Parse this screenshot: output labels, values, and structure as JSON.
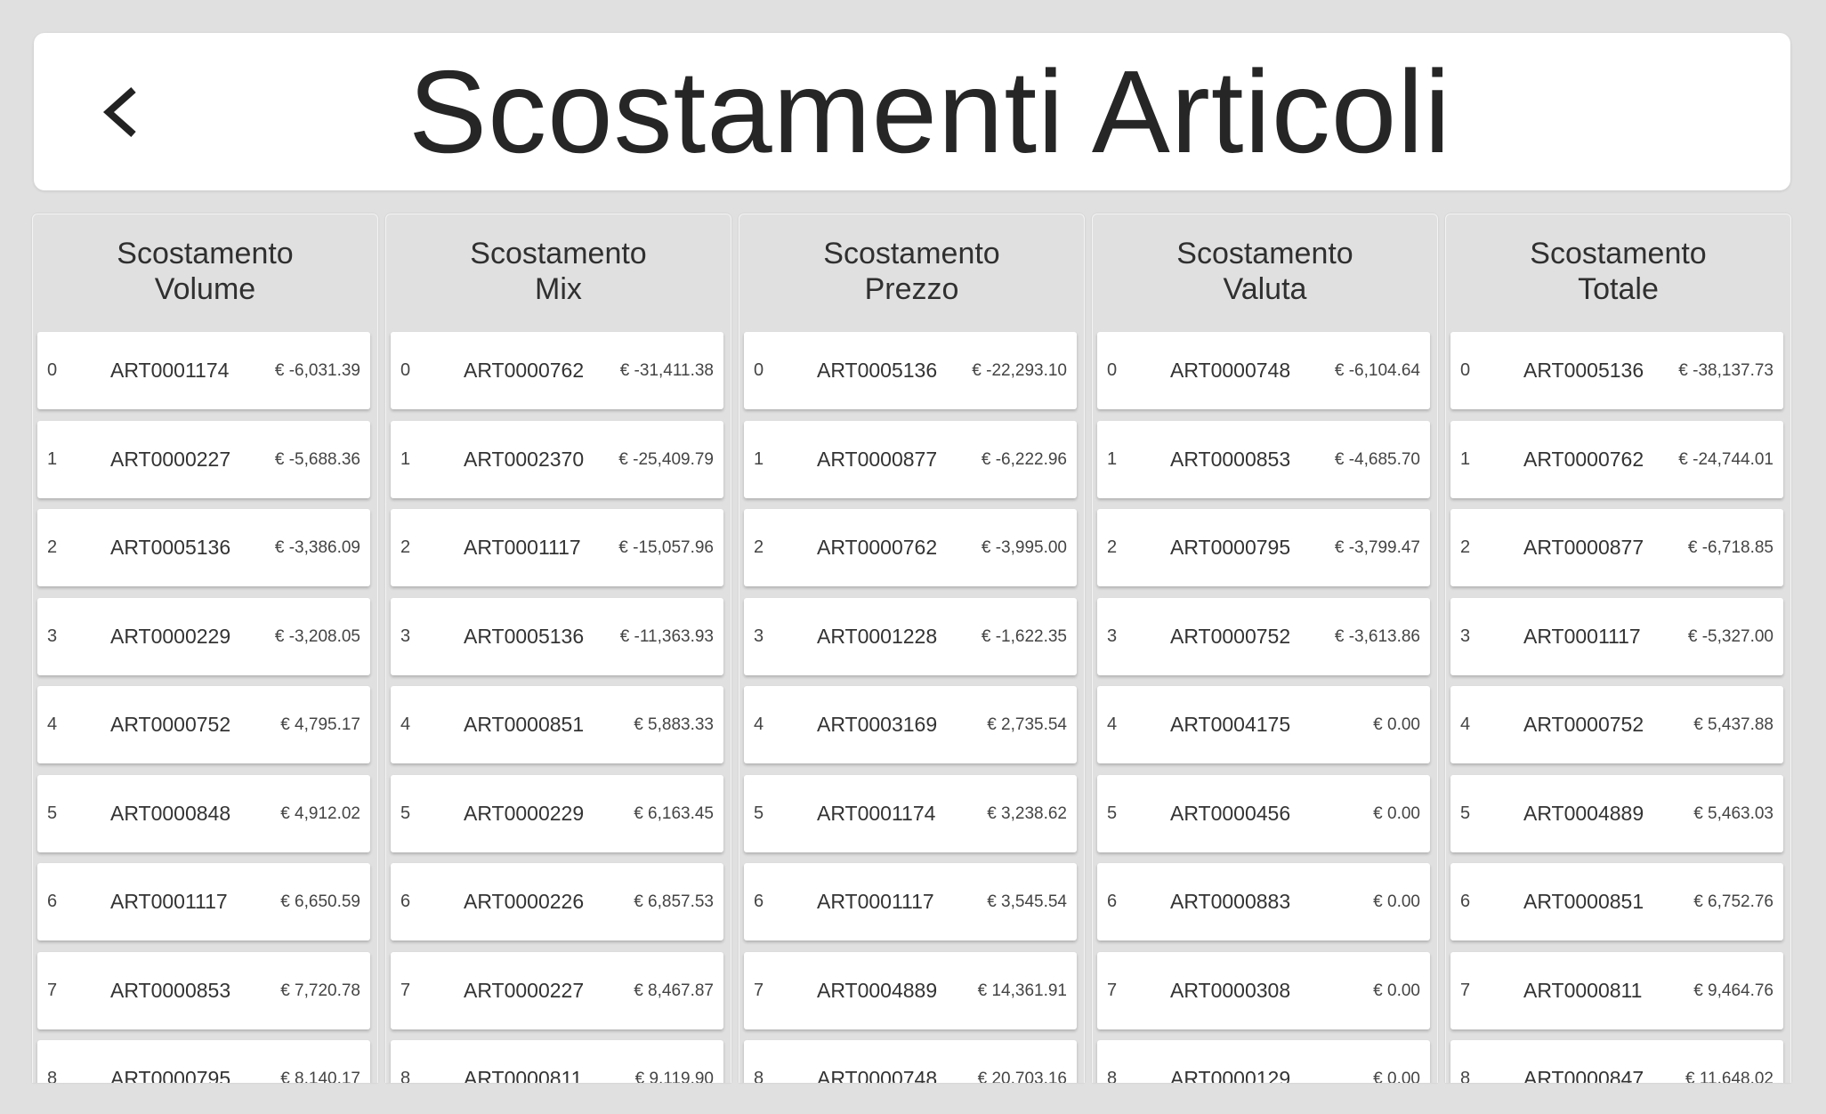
{
  "header": {
    "title": "Scostamenti Articoli",
    "back_icon": "chevron-left-icon"
  },
  "columns": [
    {
      "title_line1": "Scostamento",
      "title_line2": "Volume",
      "rows": [
        {
          "index": "0",
          "article": "ART0001174",
          "value": "€ -6,031.39"
        },
        {
          "index": "1",
          "article": "ART0000227",
          "value": "€ -5,688.36"
        },
        {
          "index": "2",
          "article": "ART0005136",
          "value": "€ -3,386.09"
        },
        {
          "index": "3",
          "article": "ART0000229",
          "value": "€ -3,208.05"
        },
        {
          "index": "4",
          "article": "ART0000752",
          "value": "€ 4,795.17"
        },
        {
          "index": "5",
          "article": "ART0000848",
          "value": "€ 4,912.02"
        },
        {
          "index": "6",
          "article": "ART0001117",
          "value": "€ 6,650.59"
        },
        {
          "index": "7",
          "article": "ART0000853",
          "value": "€ 7,720.78"
        },
        {
          "index": "8",
          "article": "ART0000795",
          "value": "€ 8,140.17"
        }
      ]
    },
    {
      "title_line1": "Scostamento",
      "title_line2": "Mix",
      "rows": [
        {
          "index": "0",
          "article": "ART0000762",
          "value": "€ -31,411.38"
        },
        {
          "index": "1",
          "article": "ART0002370",
          "value": "€ -25,409.79"
        },
        {
          "index": "2",
          "article": "ART0001117",
          "value": "€ -15,057.96"
        },
        {
          "index": "3",
          "article": "ART0005136",
          "value": "€ -11,363.93"
        },
        {
          "index": "4",
          "article": "ART0000851",
          "value": "€ 5,883.33"
        },
        {
          "index": "5",
          "article": "ART0000229",
          "value": "€ 6,163.45"
        },
        {
          "index": "6",
          "article": "ART0000226",
          "value": "€ 6,857.53"
        },
        {
          "index": "7",
          "article": "ART0000227",
          "value": "€ 8,467.87"
        },
        {
          "index": "8",
          "article": "ART0000811",
          "value": "€ 9,119.90"
        }
      ]
    },
    {
      "title_line1": "Scostamento",
      "title_line2": "Prezzo",
      "rows": [
        {
          "index": "0",
          "article": "ART0005136",
          "value": "€ -22,293.10"
        },
        {
          "index": "1",
          "article": "ART0000877",
          "value": "€ -6,222.96"
        },
        {
          "index": "2",
          "article": "ART0000762",
          "value": "€ -3,995.00"
        },
        {
          "index": "3",
          "article": "ART0001228",
          "value": "€ -1,622.35"
        },
        {
          "index": "4",
          "article": "ART0003169",
          "value": "€ 2,735.54"
        },
        {
          "index": "5",
          "article": "ART0001174",
          "value": "€ 3,238.62"
        },
        {
          "index": "6",
          "article": "ART0001117",
          "value": "€ 3,545.54"
        },
        {
          "index": "7",
          "article": "ART0004889",
          "value": "€ 14,361.91"
        },
        {
          "index": "8",
          "article": "ART0000748",
          "value": "€ 20,703.16"
        }
      ]
    },
    {
      "title_line1": "Scostamento",
      "title_line2": "Valuta",
      "rows": [
        {
          "index": "0",
          "article": "ART0000748",
          "value": "€ -6,104.64"
        },
        {
          "index": "1",
          "article": "ART0000853",
          "value": "€ -4,685.70"
        },
        {
          "index": "2",
          "article": "ART0000795",
          "value": "€ -3,799.47"
        },
        {
          "index": "3",
          "article": "ART0000752",
          "value": "€ -3,613.86"
        },
        {
          "index": "4",
          "article": "ART0004175",
          "value": "€ 0.00"
        },
        {
          "index": "5",
          "article": "ART0000456",
          "value": "€ 0.00"
        },
        {
          "index": "6",
          "article": "ART0000883",
          "value": "€ 0.00"
        },
        {
          "index": "7",
          "article": "ART0000308",
          "value": "€ 0.00"
        },
        {
          "index": "8",
          "article": "ART0000129",
          "value": "€ 0.00"
        }
      ]
    },
    {
      "title_line1": "Scostamento",
      "title_line2": "Totale",
      "rows": [
        {
          "index": "0",
          "article": "ART0005136",
          "value": "€ -38,137.73"
        },
        {
          "index": "1",
          "article": "ART0000762",
          "value": "€ -24,744.01"
        },
        {
          "index": "2",
          "article": "ART0000877",
          "value": "€ -6,718.85"
        },
        {
          "index": "3",
          "article": "ART0001117",
          "value": "€ -5,327.00"
        },
        {
          "index": "4",
          "article": "ART0000752",
          "value": "€ 5,437.88"
        },
        {
          "index": "5",
          "article": "ART0004889",
          "value": "€ 5,463.03"
        },
        {
          "index": "6",
          "article": "ART0000851",
          "value": "€ 6,752.76"
        },
        {
          "index": "7",
          "article": "ART0000811",
          "value": "€ 9,464.76"
        },
        {
          "index": "8",
          "article": "ART0000847",
          "value": "€ 11,648.02"
        }
      ]
    }
  ]
}
